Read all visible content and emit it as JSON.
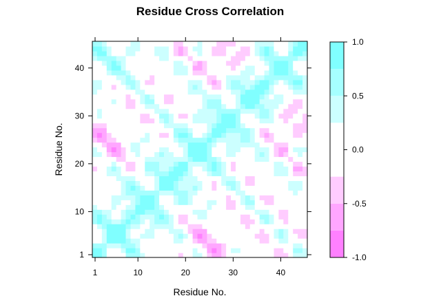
{
  "chart_data": {
    "type": "heatmap",
    "subtype": "contour",
    "title": "Residue Cross Correlation",
    "xlabel": "Residue No.",
    "ylabel": "Residue No.",
    "xlim": [
      1,
      45
    ],
    "ylim": [
      1,
      45
    ],
    "x_ticks": [
      1,
      10,
      20,
      30,
      40
    ],
    "y_ticks": [
      1,
      10,
      20,
      30,
      40
    ],
    "colorbar": {
      "range": [
        -1.0,
        1.0
      ],
      "ticks": [
        1.0,
        0.5,
        0.0,
        -0.5,
        -1.0
      ],
      "tick_labels": [
        "1.0",
        "0.5",
        "0.0",
        "-0.5",
        "-1.0"
      ],
      "levels": [
        -1.0,
        -0.75,
        -0.5,
        -0.25,
        0.25,
        0.5,
        0.75,
        1.0
      ],
      "colors": [
        "#FF80FF",
        "#FFA6FF",
        "#FFCCFF",
        "#FFFFFF",
        "#CCFFFF",
        "#A6FFFF",
        "#80FFFF"
      ],
      "placement": "right"
    },
    "grid": false
  }
}
